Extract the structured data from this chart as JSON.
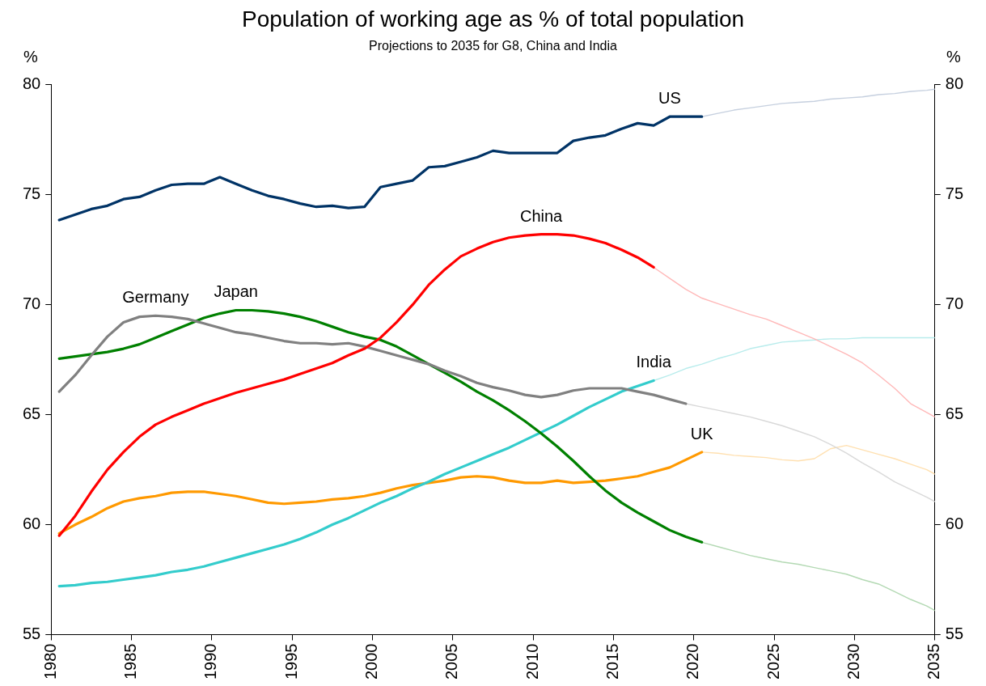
{
  "chart_data": {
    "type": "line",
    "title": "Population of working age as % of total population",
    "subtitle": "Projections to 2035 for G8, China and India",
    "ylabel": "%",
    "y2label": "%",
    "xlim": [
      1980,
      2035
    ],
    "xticks": [
      1980,
      1985,
      1990,
      1995,
      2000,
      2005,
      2010,
      2015,
      2020,
      2025,
      2030,
      2035
    ],
    "ylim": [
      55,
      80
    ],
    "yticks": [
      55,
      60,
      65,
      70,
      75,
      80
    ],
    "y2lim": [
      55,
      80
    ],
    "y2ticks": [
      55,
      60,
      65,
      70,
      75,
      80
    ],
    "legend": false,
    "series": [
      {
        "name": "US",
        "color": "#003366",
        "x": [
          1980.5,
          1981.5,
          1982.5,
          1983.5,
          1984.5,
          1985.5,
          1986.5,
          1987.5,
          1988.5,
          1989.5,
          1990.5,
          1991.5,
          1992.5,
          1993.5,
          1994.5,
          1995.5,
          1996.5,
          1997.5,
          1998.5,
          1999.5,
          2000.5,
          2001.5,
          2002.5,
          2003.5,
          2004.5,
          2005.5,
          2006.5,
          2007.5,
          2008.5,
          2009.5,
          2010.5,
          2011.5,
          2012.5,
          2013.5,
          2014.5,
          2015.5,
          2016.5,
          2017.5,
          2018.5,
          2019.5,
          2020.5
        ],
        "values": [
          73.85,
          74.1,
          74.35,
          74.5,
          74.8,
          74.9,
          75.2,
          75.45,
          75.5,
          75.5,
          75.8,
          75.5,
          75.2,
          74.95,
          74.8,
          74.6,
          74.45,
          74.5,
          74.4,
          74.45,
          75.35,
          75.5,
          75.65,
          76.25,
          76.3,
          76.5,
          76.7,
          77.0,
          76.9,
          76.9,
          76.9,
          76.9,
          77.45,
          77.6,
          77.7,
          78.0,
          78.25,
          78.15,
          78.55,
          78.55,
          78.55
        ]
      },
      {
        "color": "#c6d0df",
        "x": [
          2020.5,
          2021.5,
          2022.5,
          2023.5,
          2024.5,
          2025.5,
          2026.5,
          2027.5,
          2028.5,
          2029.5,
          2030.5,
          2031.5,
          2032.5,
          2033.5,
          2034.5,
          2035
        ],
        "values": [
          78.55,
          78.7,
          78.85,
          78.95,
          79.05,
          79.15,
          79.2,
          79.25,
          79.35,
          79.4,
          79.45,
          79.55,
          79.6,
          79.7,
          79.75,
          79.8
        ]
      },
      {
        "name": "China",
        "color": "#ff0000",
        "x": [
          1980.5,
          1981.5,
          1982.5,
          1983.5,
          1984.5,
          1985.5,
          1986.5,
          1987.5,
          1988.5,
          1989.5,
          1990.5,
          1991.5,
          1992.5,
          1993.5,
          1994.5,
          1995.5,
          1996.5,
          1997.5,
          1998.5,
          1999.5,
          2000.5,
          2001.5,
          2002.5,
          2003.5,
          2004.5,
          2005.5,
          2006.5,
          2007.5,
          2008.5,
          2009.5,
          2010.5,
          2011.5,
          2012.5,
          2013.5,
          2014.5,
          2015.5,
          2016.5,
          2017.5
        ],
        "values": [
          59.5,
          60.4,
          61.5,
          62.5,
          63.3,
          64.0,
          64.55,
          64.9,
          65.2,
          65.5,
          65.75,
          66.0,
          66.2,
          66.4,
          66.6,
          66.85,
          67.1,
          67.35,
          67.7,
          68.0,
          68.5,
          69.2,
          70.0,
          70.9,
          71.6,
          72.2,
          72.55,
          72.85,
          73.05,
          73.15,
          73.2,
          73.2,
          73.15,
          73.0,
          72.8,
          72.5,
          72.15,
          71.7
        ]
      },
      {
        "color": "#ffb8b8",
        "x": [
          2017.5,
          2018.5,
          2019.5,
          2020.5,
          2021.5,
          2022.5,
          2023.5,
          2024.5,
          2025.5,
          2026.5,
          2027.5,
          2028.5,
          2029.5,
          2030.5,
          2031.5,
          2032.5,
          2033.5,
          2035
        ],
        "values": [
          71.7,
          71.2,
          70.7,
          70.3,
          70.05,
          69.8,
          69.55,
          69.35,
          69.05,
          68.75,
          68.45,
          68.1,
          67.75,
          67.35,
          66.8,
          66.2,
          65.5,
          64.9
        ]
      },
      {
        "name": "Germany",
        "color": "#808080",
        "x": [
          1980.5,
          1981.5,
          1982.5,
          1983.5,
          1984.5,
          1985.5,
          1986.5,
          1987.5,
          1988.5,
          1989.5,
          1990.5,
          1991.5,
          1992.5,
          1993.5,
          1994.5,
          1995.5,
          1996.5,
          1997.5,
          1998.5,
          1999.5,
          2000.5,
          2001.5,
          2002.5,
          2003.5,
          2004.5,
          2005.5,
          2006.5,
          2007.5,
          2008.5,
          2009.5,
          2010.5,
          2011.5,
          2012.5,
          2013.5,
          2014.5,
          2015.5,
          2016.5,
          2017.5,
          2018.5,
          2019.5
        ],
        "values": [
          66.05,
          66.8,
          67.7,
          68.55,
          69.2,
          69.45,
          69.5,
          69.45,
          69.35,
          69.15,
          68.95,
          68.75,
          68.65,
          68.5,
          68.35,
          68.25,
          68.25,
          68.2,
          68.25,
          68.1,
          67.9,
          67.7,
          67.5,
          67.3,
          67.0,
          66.75,
          66.45,
          66.25,
          66.1,
          65.9,
          65.8,
          65.9,
          66.1,
          66.2,
          66.2,
          66.2,
          66.05,
          65.9,
          65.7,
          65.5
        ]
      },
      {
        "color": "#d9d9d9",
        "x": [
          2019.5,
          2020.5,
          2021.5,
          2022.5,
          2023.5,
          2024.5,
          2025.5,
          2026.5,
          2027.5,
          2028.5,
          2029.5,
          2030.5,
          2031.5,
          2032.5,
          2033.5,
          2034.5,
          2035
        ],
        "values": [
          65.5,
          65.35,
          65.2,
          65.05,
          64.9,
          64.7,
          64.5,
          64.25,
          64.0,
          63.65,
          63.25,
          62.8,
          62.4,
          61.95,
          61.6,
          61.25,
          61.05
        ]
      },
      {
        "name": "Japan",
        "color": "#008000",
        "x": [
          1980.5,
          1981.5,
          1982.5,
          1983.5,
          1984.5,
          1985.5,
          1986.5,
          1987.5,
          1988.5,
          1989.5,
          1990.5,
          1991.5,
          1992.5,
          1993.5,
          1994.5,
          1995.5,
          1996.5,
          1997.5,
          1998.5,
          1999.5,
          2000.5,
          2001.5,
          2002.5,
          2003.5,
          2004.5,
          2005.5,
          2006.5,
          2007.5,
          2008.5,
          2009.5,
          2010.5,
          2011.5,
          2012.5,
          2013.5,
          2014.5,
          2015.5,
          2016.5,
          2017.5,
          2018.5,
          2019.5,
          2020.5
        ],
        "values": [
          67.55,
          67.65,
          67.75,
          67.85,
          68.0,
          68.2,
          68.5,
          68.8,
          69.1,
          69.4,
          69.6,
          69.75,
          69.75,
          69.7,
          69.6,
          69.45,
          69.25,
          69.0,
          68.75,
          68.55,
          68.4,
          68.1,
          67.7,
          67.3,
          66.9,
          66.5,
          66.05,
          65.65,
          65.2,
          64.7,
          64.15,
          63.55,
          62.9,
          62.2,
          61.55,
          61.0,
          60.55,
          60.15,
          59.75,
          59.45,
          59.2
        ]
      },
      {
        "color": "#b3d9b3",
        "x": [
          2020.5,
          2021.5,
          2022.5,
          2023.5,
          2024.5,
          2025.5,
          2026.5,
          2027.5,
          2028.5,
          2029.5,
          2030.5,
          2031.5,
          2032.5,
          2033.5,
          2034.5,
          2035
        ],
        "values": [
          59.2,
          59.0,
          58.8,
          58.6,
          58.45,
          58.3,
          58.2,
          58.05,
          57.9,
          57.75,
          57.5,
          57.3,
          56.95,
          56.6,
          56.3,
          56.1
        ]
      },
      {
        "name": "India",
        "color": "#33cccc",
        "x": [
          1980.5,
          1981.5,
          1982.5,
          1983.5,
          1984.5,
          1985.5,
          1986.5,
          1987.5,
          1988.5,
          1989.5,
          1990.5,
          1991.5,
          1992.5,
          1993.5,
          1994.5,
          1995.5,
          1996.5,
          1997.5,
          1998.5,
          1999.5,
          2000.5,
          2001.5,
          2002.5,
          2003.5,
          2004.5,
          2005.5,
          2006.5,
          2007.5,
          2008.5,
          2009.5,
          2010.5,
          2011.5,
          2012.5,
          2013.5,
          2014.5,
          2015.5,
          2016.5,
          2017.5
        ],
        "values": [
          57.2,
          57.25,
          57.35,
          57.4,
          57.5,
          57.6,
          57.7,
          57.85,
          57.95,
          58.1,
          58.3,
          58.5,
          58.7,
          58.9,
          59.1,
          59.35,
          59.65,
          60.0,
          60.3,
          60.65,
          61.0,
          61.3,
          61.65,
          61.95,
          62.3,
          62.6,
          62.9,
          63.2,
          63.5,
          63.85,
          64.2,
          64.55,
          64.95,
          65.35,
          65.7,
          66.05,
          66.3,
          66.55
        ]
      },
      {
        "color": "#b8ecec",
        "x": [
          2017.5,
          2018.5,
          2019.5,
          2020.5,
          2021.5,
          2022.5,
          2023.5,
          2024.5,
          2025.5,
          2026.5,
          2027.5,
          2028.5,
          2029.5,
          2030.5,
          2031.5,
          2032.5,
          2033.5,
          2034.5,
          2035
        ],
        "values": [
          66.55,
          66.8,
          67.1,
          67.3,
          67.55,
          67.75,
          68.0,
          68.15,
          68.3,
          68.35,
          68.4,
          68.45,
          68.45,
          68.5,
          68.5,
          68.5,
          68.5,
          68.5,
          68.5
        ]
      },
      {
        "name": "UK",
        "color": "#ff9900",
        "x": [
          1980.5,
          1981.5,
          1982.5,
          1983.5,
          1984.5,
          1985.5,
          1986.5,
          1987.5,
          1988.5,
          1989.5,
          1990.5,
          1991.5,
          1992.5,
          1993.5,
          1994.5,
          1995.5,
          1996.5,
          1997.5,
          1998.5,
          1999.5,
          2000.5,
          2001.5,
          2002.5,
          2003.5,
          2004.5,
          2005.5,
          2006.5,
          2007.5,
          2008.5,
          2009.5,
          2010.5,
          2011.5,
          2012.5,
          2013.5,
          2014.5,
          2015.5,
          2016.5,
          2017.5,
          2018.5,
          2019.5,
          2020.5
        ],
        "values": [
          59.6,
          60.0,
          60.35,
          60.75,
          61.05,
          61.2,
          61.3,
          61.45,
          61.5,
          61.5,
          61.4,
          61.3,
          61.15,
          61.0,
          60.95,
          61.0,
          61.05,
          61.15,
          61.2,
          61.3,
          61.45,
          61.65,
          61.8,
          61.9,
          62.0,
          62.15,
          62.2,
          62.15,
          62.0,
          61.9,
          61.9,
          62.0,
          61.9,
          61.95,
          62.0,
          62.1,
          62.2,
          62.4,
          62.6,
          62.95,
          63.3
        ]
      },
      {
        "color": "#ffe0b0",
        "x": [
          2020.5,
          2021.5,
          2022.5,
          2023.5,
          2024.5,
          2025.5,
          2026.5,
          2027.5,
          2028.5,
          2029.5,
          2030.5,
          2031.5,
          2032.5,
          2033.5,
          2034.5,
          2035
        ],
        "values": [
          63.3,
          63.25,
          63.15,
          63.1,
          63.05,
          62.95,
          62.9,
          63.0,
          63.45,
          63.6,
          63.4,
          63.2,
          63.0,
          62.75,
          62.5,
          62.3
        ]
      }
    ]
  }
}
